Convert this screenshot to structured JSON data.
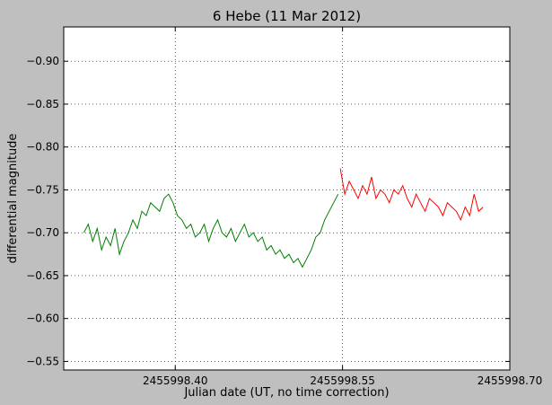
{
  "chart_data": {
    "type": "line",
    "title": "6 Hebe (11 Mar 2012)",
    "xlabel": "Julian date (UT, no time correction)",
    "ylabel": "differential magnitude",
    "xlim": [
      2455998.3,
      2455998.7
    ],
    "ylim": [
      -0.54,
      -0.94
    ],
    "y_inverted": true,
    "x_ticks": [
      2455998.4,
      2455998.55,
      2455998.7
    ],
    "x_tick_labels": [
      "2455998.40",
      "2455998.55",
      "2455998.70"
    ],
    "y_ticks": [
      -0.9,
      -0.85,
      -0.8,
      -0.75,
      -0.7,
      -0.65,
      -0.6,
      -0.55
    ],
    "y_tick_labels": [
      "−0.90",
      "−0.85",
      "−0.80",
      "−0.75",
      "−0.70",
      "−0.65",
      "−0.60",
      "−0.55"
    ],
    "grid": true,
    "colors": {
      "series1": "#008000",
      "series2": "#ff0000",
      "background": "#bfbfbf",
      "plot": "#ffffff"
    },
    "series": [
      {
        "color": "#008000",
        "x": [
          2455998.318,
          2455998.322,
          2455998.326,
          2455998.33,
          2455998.334,
          2455998.338,
          2455998.342,
          2455998.346,
          2455998.35,
          2455998.354,
          2455998.358,
          2455998.362,
          2455998.366,
          2455998.37,
          2455998.374,
          2455998.378,
          2455998.382,
          2455998.386,
          2455998.39,
          2455998.394,
          2455998.398,
          2455998.402,
          2455998.406,
          2455998.41,
          2455998.414,
          2455998.418,
          2455998.422,
          2455998.426,
          2455998.43,
          2455998.434,
          2455998.438,
          2455998.442,
          2455998.446,
          2455998.45,
          2455998.454,
          2455998.458,
          2455998.462,
          2455998.466,
          2455998.47,
          2455998.474,
          2455998.478,
          2455998.482,
          2455998.486,
          2455998.49,
          2455998.494,
          2455998.498,
          2455998.502,
          2455998.506,
          2455998.51,
          2455998.514,
          2455998.518,
          2455998.522,
          2455998.526,
          2455998.53,
          2455998.534,
          2455998.538,
          2455998.542,
          2455998.546
        ],
        "y": [
          -0.7,
          -0.71,
          -0.69,
          -0.705,
          -0.68,
          -0.695,
          -0.685,
          -0.705,
          -0.675,
          -0.69,
          -0.7,
          -0.715,
          -0.705,
          -0.725,
          -0.72,
          -0.735,
          -0.73,
          -0.725,
          -0.74,
          -0.745,
          -0.735,
          -0.72,
          -0.715,
          -0.705,
          -0.71,
          -0.695,
          -0.7,
          -0.71,
          -0.69,
          -0.705,
          -0.715,
          -0.7,
          -0.695,
          -0.705,
          -0.69,
          -0.7,
          -0.71,
          -0.695,
          -0.7,
          -0.69,
          -0.695,
          -0.68,
          -0.685,
          -0.675,
          -0.68,
          -0.67,
          -0.675,
          -0.665,
          -0.67,
          -0.66,
          -0.67,
          -0.68,
          -0.695,
          -0.7,
          -0.715,
          -0.725,
          -0.735,
          -0.745
        ]
      },
      {
        "color": "#ff0000",
        "x": [
          2455998.548,
          2455998.552,
          2455998.556,
          2455998.56,
          2455998.564,
          2455998.568,
          2455998.572,
          2455998.576,
          2455998.58,
          2455998.584,
          2455998.588,
          2455998.592,
          2455998.596,
          2455998.6,
          2455998.604,
          2455998.608,
          2455998.612,
          2455998.616,
          2455998.62,
          2455998.624,
          2455998.628,
          2455998.632,
          2455998.636,
          2455998.64,
          2455998.644,
          2455998.648,
          2455998.652,
          2455998.656,
          2455998.66,
          2455998.664,
          2455998.668,
          2455998.672,
          2455998.676
        ],
        "y": [
          -0.775,
          -0.745,
          -0.76,
          -0.75,
          -0.74,
          -0.755,
          -0.745,
          -0.765,
          -0.74,
          -0.75,
          -0.745,
          -0.735,
          -0.75,
          -0.745,
          -0.755,
          -0.74,
          -0.73,
          -0.745,
          -0.735,
          -0.725,
          -0.74,
          -0.735,
          -0.73,
          -0.72,
          -0.735,
          -0.73,
          -0.725,
          -0.715,
          -0.73,
          -0.72,
          -0.745,
          -0.725,
          -0.73
        ]
      }
    ]
  }
}
